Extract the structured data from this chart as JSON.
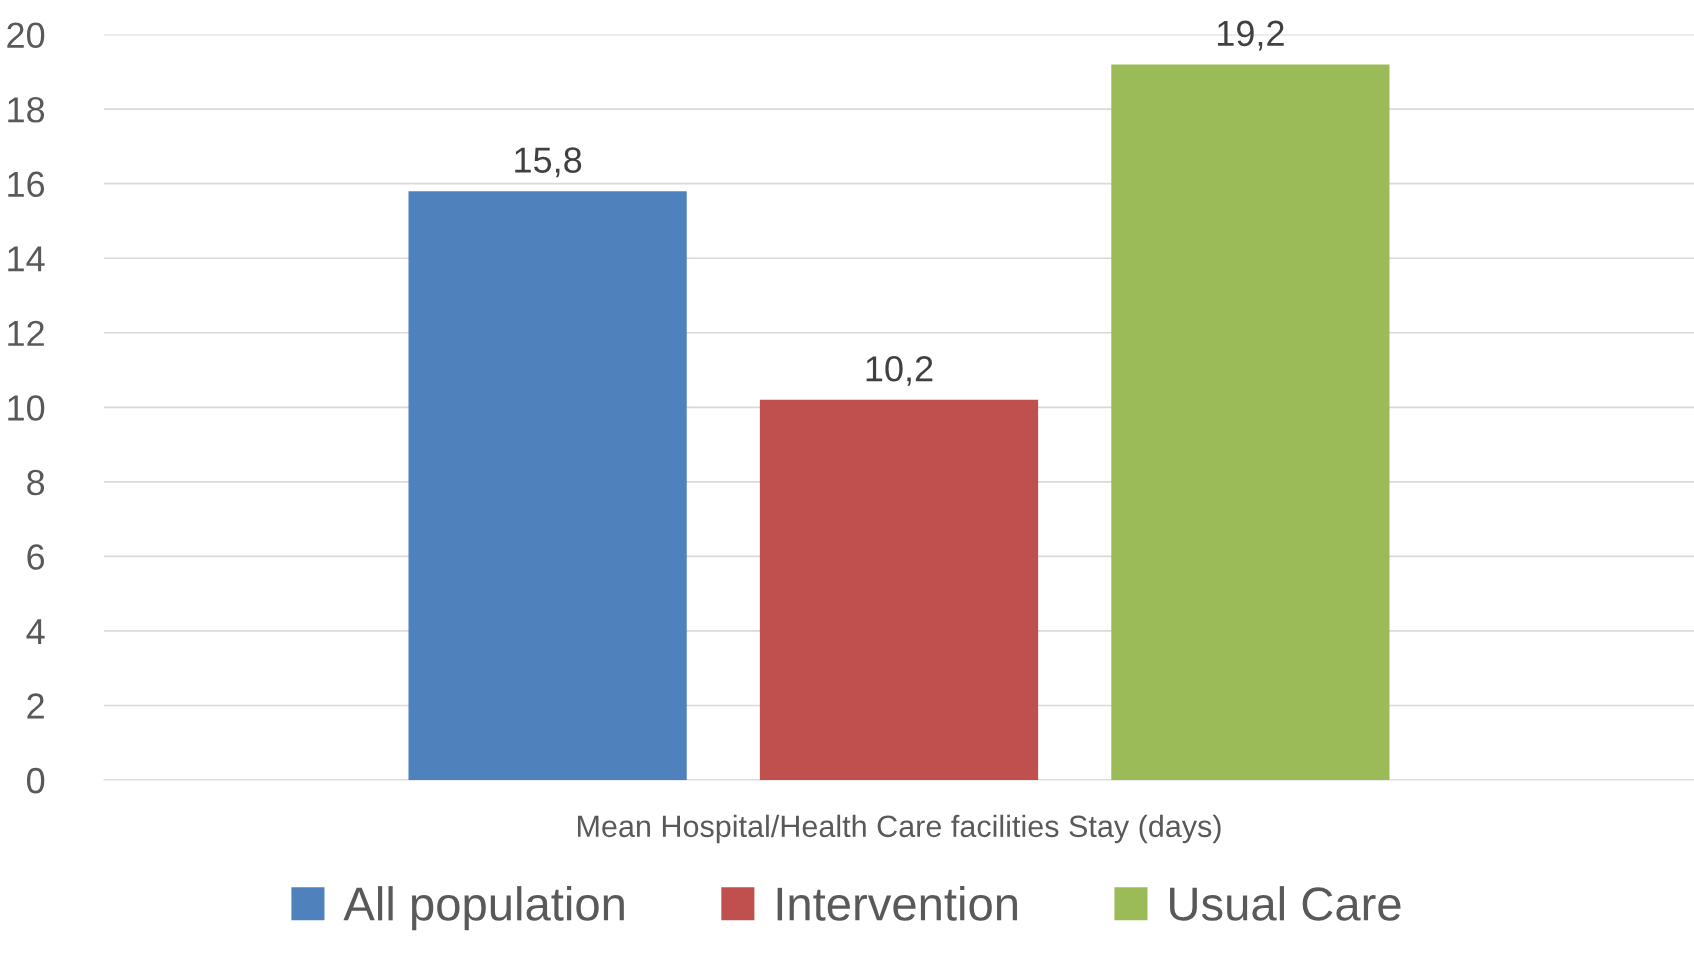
{
  "chart_data": {
    "type": "bar",
    "categories": [
      "Mean Hospital/Health Care facilities Stay (days)"
    ],
    "series": [
      {
        "name": "All population",
        "color": "#4f81bd",
        "values": [
          15.8
        ],
        "value_labels": [
          "15,8"
        ]
      },
      {
        "name": "Intervention",
        "color": "#c0504d",
        "values": [
          10.2
        ],
        "value_labels": [
          "10,2"
        ]
      },
      {
        "name": "Usual Care",
        "color": "#9bbb59",
        "values": [
          19.2
        ],
        "value_labels": [
          "19,2"
        ]
      }
    ],
    "ylim": [
      0,
      20
    ],
    "yticks": [
      0,
      2,
      4,
      6,
      8,
      10,
      12,
      14,
      16,
      18,
      20
    ],
    "grid": "y",
    "legend": "bottom"
  }
}
